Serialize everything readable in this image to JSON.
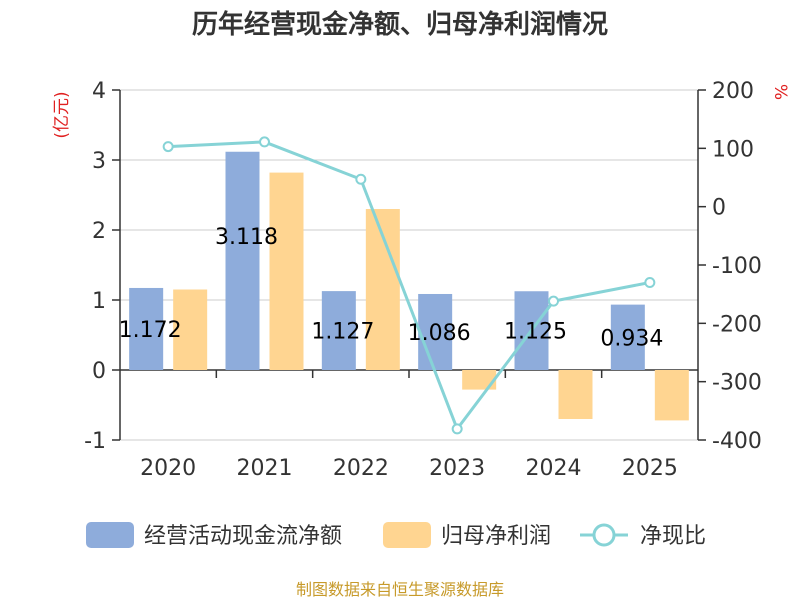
{
  "chart_data": {
    "type": "bar",
    "title": "历年经营现金净额、归母净利润情况",
    "categories": [
      "2020",
      "2021",
      "2022",
      "2023",
      "2024",
      "2025"
    ],
    "series": [
      {
        "name": "经营活动现金流净额",
        "kind": "bar",
        "axis": "left",
        "values": [
          1.172,
          3.118,
          1.127,
          1.086,
          1.125,
          0.934
        ],
        "color": "#8eacdb"
      },
      {
        "name": "归母净利润",
        "kind": "bar",
        "axis": "left",
        "values": [
          1.15,
          2.82,
          2.3,
          -0.28,
          -0.7,
          -0.72
        ],
        "color": "#ffd591"
      },
      {
        "name": "净现比",
        "kind": "line",
        "axis": "right",
        "values": [
          103,
          111,
          47,
          -381,
          -162,
          -130
        ],
        "color": "#86d3d6"
      }
    ],
    "data_labels": [
      "1.172",
      "3.118",
      "1.127",
      "1.086",
      "1.125",
      "0.934"
    ],
    "y_left": {
      "label": "(亿元)",
      "ylim": [
        -1,
        4
      ],
      "ticks": [
        "4",
        "3",
        "2",
        "1",
        "0",
        "-1"
      ]
    },
    "y_right": {
      "label": "%",
      "ylim": [
        -400,
        200
      ],
      "ticks": [
        "200",
        "100",
        "0",
        "-100",
        "-200",
        "-300",
        "-400"
      ]
    },
    "grid": true,
    "legend_position": "bottom"
  },
  "source": "制图数据来自恒生聚源数据库"
}
